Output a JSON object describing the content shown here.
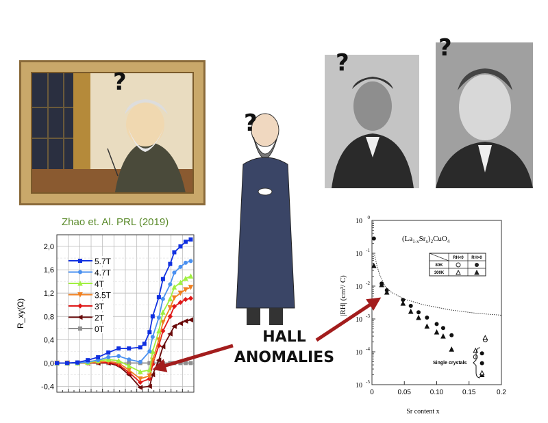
{
  "question_mark": "?",
  "hall_label": {
    "line1": "HALL",
    "line2": "ANOMALIES"
  },
  "images": {
    "painting": "cartoon-scientist-writing-painting",
    "cartoon_figure": "cartoon-scientist-with-cup",
    "photo_left": "portrait-photo-mustached-man",
    "photo_right": "portrait-photo-man"
  },
  "colors": {
    "arrow": "#a31d1d",
    "title_green": "#5a8a2a"
  },
  "chart_data": [
    {
      "type": "line",
      "title": "Zhao et. Al. PRL (2019)",
      "ylabel": "R_xy(Ω)",
      "ylabel_main": "R",
      "ylabel_sub": "xy",
      "ylabel_unit": "(Ω)",
      "xlabel": "",
      "ylim": [
        -0.5,
        2.2
      ],
      "xlim": [
        0,
        13.3
      ],
      "yticks": [
        "-0,4",
        "0,0",
        "0,4",
        "0,8",
        "1,2",
        "1,6",
        "2,0"
      ],
      "ytick_values": [
        -0.4,
        0,
        0.4,
        0.8,
        1.2,
        1.6,
        2.0
      ],
      "grid": true,
      "legend_placement": "left",
      "series": [
        {
          "name": "5.7T",
          "color": "#1030e0",
          "marker": "square",
          "x": [
            0,
            1,
            2,
            3,
            4,
            5,
            6,
            7,
            8.1,
            8.5,
            9,
            9.3,
            9.9,
            10.3,
            11,
            11.4,
            12,
            12.5,
            13
          ],
          "y": [
            0,
            0,
            0.01,
            0.05,
            0.1,
            0.18,
            0.25,
            0.25,
            0.27,
            0.33,
            0.53,
            0.8,
            1.13,
            1.44,
            1.7,
            1.9,
            2.0,
            2.08,
            2.12
          ]
        },
        {
          "name": "4.7T",
          "color": "#4a90f0",
          "marker": "circle",
          "x": [
            0,
            1,
            2,
            3,
            4,
            5,
            6,
            7,
            8.1,
            9,
            9.3,
            9.9,
            10.3,
            11,
            11.4,
            12,
            12.5,
            13
          ],
          "y": [
            0,
            0,
            0,
            0.02,
            0.05,
            0.1,
            0.12,
            0.06,
            0.02,
            0.2,
            0.45,
            0.78,
            1.1,
            1.35,
            1.55,
            1.65,
            1.72,
            1.75
          ]
        },
        {
          "name": "4T",
          "color": "#a0f040",
          "marker": "triangle-up",
          "x": [
            0,
            1,
            2,
            3,
            4,
            5,
            6,
            7,
            8.1,
            9,
            9.3,
            9.9,
            10.3,
            11,
            11.4,
            12,
            12.5,
            13
          ],
          "y": [
            0,
            0,
            0,
            0.01,
            0.04,
            0.06,
            0.04,
            -0.05,
            -0.15,
            -0.12,
            0.2,
            0.55,
            0.87,
            1.1,
            1.3,
            1.38,
            1.45,
            1.49
          ]
        },
        {
          "name": "3.5T",
          "color": "#f08020",
          "marker": "triangle-down",
          "x": [
            0,
            1,
            2,
            3,
            4,
            5,
            6,
            7,
            8.1,
            9,
            9.3,
            9.9,
            10.3,
            11,
            11.4,
            12,
            12.5,
            13
          ],
          "y": [
            0,
            0,
            0,
            0,
            0.02,
            0.03,
            0,
            -0.12,
            -0.27,
            -0.22,
            0.05,
            0.4,
            0.7,
            0.95,
            1.12,
            1.2,
            1.26,
            1.3
          ]
        },
        {
          "name": "3T",
          "color": "#e01818",
          "marker": "diamond",
          "x": [
            0,
            1,
            2,
            3,
            4,
            5,
            6,
            7,
            8.1,
            9,
            9.3,
            9.9,
            10.3,
            11,
            11.4,
            12,
            12.5,
            13
          ],
          "y": [
            0,
            0,
            0,
            0,
            0.01,
            0.01,
            -0.03,
            -0.16,
            -0.33,
            -0.27,
            -0.02,
            0.3,
            0.55,
            0.8,
            0.97,
            1.04,
            1.09,
            1.11
          ]
        },
        {
          "name": "2T",
          "color": "#6a0a0a",
          "marker": "triangle-left",
          "x": [
            0,
            1,
            2,
            3,
            4,
            5,
            6,
            7,
            8.1,
            9,
            9.3,
            9.9,
            10.3,
            11,
            11.4,
            12,
            12.5,
            13
          ],
          "y": [
            0,
            0,
            0,
            0,
            0,
            0,
            -0.05,
            -0.2,
            -0.42,
            -0.4,
            -0.2,
            0.05,
            0.28,
            0.5,
            0.63,
            0.68,
            0.72,
            0.74
          ]
        },
        {
          "name": "0T",
          "color": "#909090",
          "marker": "square",
          "x": [
            0,
            1,
            2,
            3,
            4,
            5,
            6,
            7,
            8.1,
            9,
            9.3,
            9.9,
            10.3,
            11,
            11.4,
            12,
            12.5,
            13
          ],
          "y": [
            0,
            0,
            0,
            0,
            0,
            0,
            0,
            0,
            0,
            0,
            0,
            0,
            0,
            0,
            0,
            0,
            0,
            0
          ]
        }
      ]
    },
    {
      "type": "scatter",
      "title": "(La1-xSrx)2CuO4",
      "title_parts": {
        "a": "(La",
        "b": "1-x",
        "c": "Sr",
        "d": "x",
        "e": ")",
        "f": "2",
        "g": "CuO",
        "h": "4"
      },
      "xlabel": "Sr content x",
      "ylabel": "|RH| (cm³/ C)",
      "ylabel_main": "|R",
      "ylabel_sub": "H",
      "ylabel_close": "|",
      "ylabel_unit": "(cm³/ C)",
      "xlim": [
        0,
        0.2
      ],
      "ylim": [
        1e-05,
        1
      ],
      "yscale": "log",
      "xticks": [
        "0",
        "0.05",
        "0.10",
        "0.15",
        "0.2"
      ],
      "xtick_values": [
        0,
        0.05,
        0.1,
        0.15,
        0.2
      ],
      "yticks": [
        "10",
        "10",
        "10",
        "10",
        "10",
        "10"
      ],
      "ytick_exponents": [
        "0",
        "-1",
        "-2",
        "-3",
        "-4",
        "-5"
      ],
      "ytick_values": [
        1,
        0.1,
        0.01,
        0.001,
        0.0001,
        1e-05
      ],
      "annotation": "Single crystals",
      "legend": {
        "col1": "RH<0",
        "col2": "RH>0",
        "row1": "80K",
        "row2": "300K"
      },
      "series": [
        {
          "name": "80K RH>0",
          "marker": "filled-circle",
          "x": [
            0.003,
            0.015,
            0.023,
            0.048,
            0.06,
            0.072,
            0.085,
            0.1,
            0.11,
            0.123,
            0.17,
            0.17
          ],
          "y": [
            0.28,
            0.012,
            0.0075,
            0.0038,
            0.0025,
            0.0016,
            0.0011,
            0.0007,
            0.00053,
            0.00032,
            9e-05,
            4.5e-05
          ]
        },
        {
          "name": "300K RH>0",
          "marker": "filled-triangle",
          "x": [
            0.003,
            0.015,
            0.023,
            0.048,
            0.06,
            0.072,
            0.085,
            0.1,
            0.11,
            0.123,
            0.17
          ],
          "y": [
            0.042,
            0.011,
            0.0065,
            0.003,
            0.0017,
            0.0011,
            0.0006,
            0.0004,
            0.0003,
            0.00012,
            2e-05
          ]
        },
        {
          "name": "80K RH<0",
          "marker": "open-circle",
          "x": [
            0.16,
            0.175
          ],
          "y": [
            7e-05,
            0.00023
          ]
        },
        {
          "name": "300K RH<0",
          "marker": "open-triangle",
          "x": [
            0.16,
            0.175,
            0.17
          ],
          "y": [
            0.00011,
            0.00027,
            2.3e-05
          ]
        },
        {
          "name": "",
          "marker": "dotted-line",
          "x": [
            0.004,
            0.008,
            0.012,
            0.02,
            0.03,
            0.05,
            0.08,
            0.12,
            0.16,
            0.2
          ],
          "y": [
            0.09,
            0.04,
            0.022,
            0.01,
            0.0065,
            0.004,
            0.0027,
            0.0019,
            0.0015,
            0.0013
          ]
        }
      ]
    }
  ]
}
